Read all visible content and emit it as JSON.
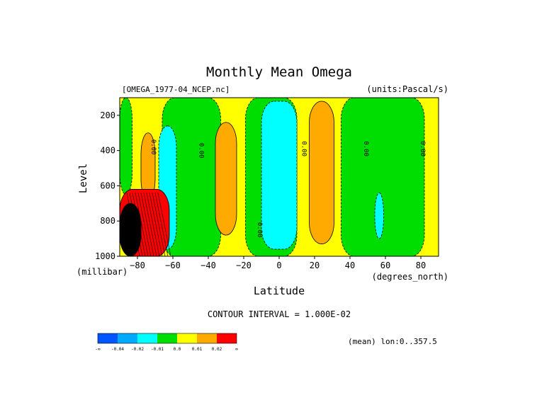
{
  "chart_data": {
    "type": "heatmap",
    "title": "Monthly Mean Omega",
    "dataset_label": "[OMEGA_1977-04_NCEP.nc]",
    "units_label": "(units:Pascal/s)",
    "xlabel": "Latitude",
    "x_units": "(degrees_north)",
    "ylabel": "Level",
    "y_units": "(millibar)",
    "xlim": [
      -90,
      90
    ],
    "ylim": [
      1000,
      100
    ],
    "x_ticks": [
      -80,
      -60,
      -40,
      -20,
      0,
      20,
      40,
      60,
      80
    ],
    "x_tick_labels": [
      "−80",
      "−60",
      "−40",
      "−20",
      "0",
      "20",
      "40",
      "60",
      "80"
    ],
    "y_ticks": [
      200,
      400,
      600,
      800,
      1000
    ],
    "y_tick_labels": [
      "200",
      "400",
      "600",
      "800",
      "1000"
    ],
    "contour_interval_text": "CONTOUR INTERVAL = 1.000E-02",
    "mean_text": "(mean) lon:0..357.5",
    "contour_labels": [
      {
        "text": "0.00",
        "lat": -72,
        "lev": 380
      },
      {
        "text": "0.00",
        "lat": -45,
        "lev": 400
      },
      {
        "text": "0.00",
        "lat": -12,
        "lev": 850
      },
      {
        "text": "0.00",
        "lat": 13,
        "lev": 390
      },
      {
        "text": "0.00",
        "lat": 48,
        "lev": 390
      },
      {
        "text": "0.00",
        "lat": 80,
        "lev": 390
      }
    ],
    "legend": {
      "colors": [
        "#0055ff",
        "#00aaff",
        "#00ffff",
        "#00dd00",
        "#ffff00",
        "#ffaa00",
        "#ff0000"
      ],
      "boundaries": [
        "-0.04",
        "-0.02",
        "-0.01",
        "0.0",
        "0.01",
        "0.02"
      ],
      "end_labels": [
        "-∞",
        "∞"
      ]
    },
    "regions": [
      {
        "level_class": "yellow",
        "color": "#ffff00",
        "lat_range": [
          -90,
          90
        ],
        "lev_range": [
          100,
          1000
        ]
      },
      {
        "level_class": "green",
        "color": "#00dd00",
        "lat_range": [
          -90,
          -83
        ],
        "lev_range": [
          100,
          650
        ]
      },
      {
        "level_class": "green",
        "color": "#00dd00",
        "lat_range": [
          -66,
          -33
        ],
        "lev_range": [
          100,
          1000
        ]
      },
      {
        "level_class": "green",
        "color": "#00dd00",
        "lat_range": [
          -19,
          10
        ],
        "lev_range": [
          100,
          1000
        ]
      },
      {
        "level_class": "green",
        "color": "#00dd00",
        "lat_range": [
          35,
          82
        ],
        "lev_range": [
          100,
          1000
        ]
      },
      {
        "level_class": "orange",
        "color": "#ffaa00",
        "lat_range": [
          -78,
          -70
        ],
        "lev_range": [
          300,
          680
        ]
      },
      {
        "level_class": "orange",
        "color": "#ffaa00",
        "lat_range": [
          -36,
          -24
        ],
        "lev_range": [
          240,
          880
        ]
      },
      {
        "level_class": "orange",
        "color": "#ffaa00",
        "lat_range": [
          17,
          31
        ],
        "lev_range": [
          120,
          930
        ]
      },
      {
        "level_class": "cyan",
        "color": "#00ffff",
        "lat_range": [
          -68,
          -58
        ],
        "lev_range": [
          260,
          960
        ]
      },
      {
        "level_class": "cyan",
        "color": "#00ffff",
        "lat_range": [
          -10,
          10
        ],
        "lev_range": [
          120,
          960
        ]
      },
      {
        "level_class": "cyan",
        "color": "#00ffff",
        "lat_range": [
          54,
          59
        ],
        "lev_range": [
          640,
          900
        ]
      },
      {
        "level_class": "red",
        "color": "#ff0000",
        "lat_range": [
          -90,
          -62
        ],
        "lev_range": [
          620,
          1000
        ]
      },
      {
        "level_class": "max",
        "color": "#000000",
        "lat_range": [
          -90,
          -78
        ],
        "lev_range": [
          700,
          1000
        ]
      }
    ]
  }
}
